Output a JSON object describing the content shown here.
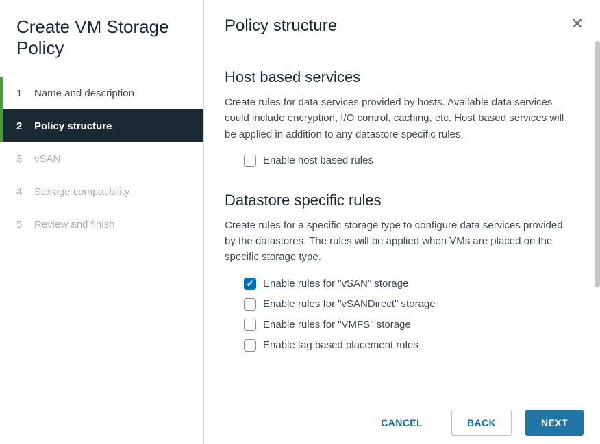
{
  "sidebar": {
    "title": "Create VM Storage Policy",
    "steps": [
      {
        "num": "1",
        "label": "Name and description",
        "state": "completed"
      },
      {
        "num": "2",
        "label": "Policy structure",
        "state": "active"
      },
      {
        "num": "3",
        "label": "vSAN",
        "state": "future"
      },
      {
        "num": "4",
        "label": "Storage compatibility",
        "state": "future"
      },
      {
        "num": "5",
        "label": "Review and finish",
        "state": "future"
      }
    ]
  },
  "main": {
    "title": "Policy structure",
    "close_glyph": "✕",
    "host_section": {
      "title": "Host based services",
      "desc": "Create rules for data services provided by hosts. Available data services could include encryption, I/O control, caching, etc. Host based services will be applied in addition to any datastore specific rules.",
      "checkbox": {
        "label": "Enable host based rules",
        "checked": false
      }
    },
    "datastore_section": {
      "title": "Datastore specific rules",
      "desc": "Create rules for a specific storage type to configure data services provided by the datastores. The rules will be applied when VMs are placed on the specific storage type.",
      "options": [
        {
          "label": "Enable rules for \"vSAN\" storage",
          "checked": true
        },
        {
          "label": "Enable rules for \"vSANDirect\" storage",
          "checked": false
        },
        {
          "label": "Enable rules for \"VMFS\" storage",
          "checked": false
        },
        {
          "label": "Enable tag based placement rules",
          "checked": false
        }
      ]
    }
  },
  "footer": {
    "cancel": "CANCEL",
    "back": "BACK",
    "next": "NEXT"
  },
  "colors": {
    "accent": "#0070b8",
    "sidebar_active_bg": "#1b2a32",
    "step_indicator": "#4d9b3a",
    "primary_btn_bg": "#2176a8"
  }
}
